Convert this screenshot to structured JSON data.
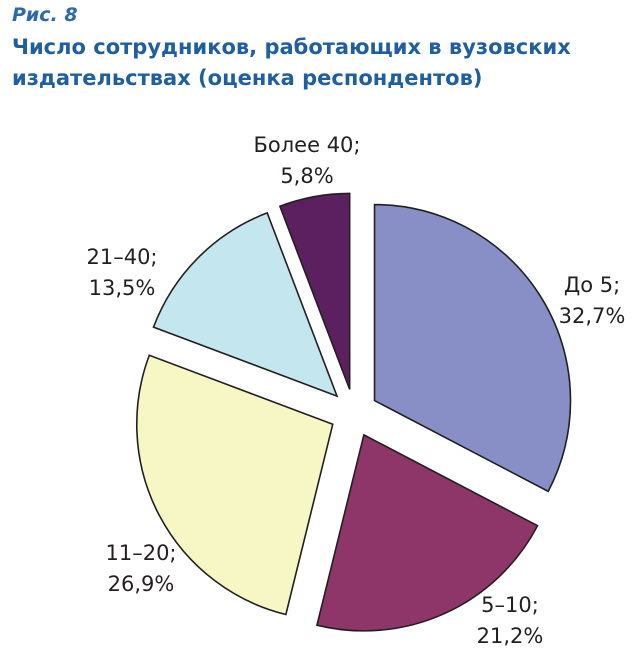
{
  "figure": {
    "label": "Рис. 8",
    "title": "Число сотрудников, работающих в вузовских издательствах (оценка респондентов)"
  },
  "chart_data": {
    "type": "pie",
    "title": "Число сотрудников, работающих в вузовских издательствах (оценка респондентов)",
    "slices": [
      {
        "label": "До 5",
        "value": 32.7,
        "value_text": "32,7%",
        "color": "#878fc6"
      },
      {
        "label": "5–10",
        "value": 21.2,
        "value_text": "21,2%",
        "color": "#8e3669"
      },
      {
        "label": "11–20",
        "value": 26.9,
        "value_text": "26,9%",
        "color": "#f7f7c5"
      },
      {
        "label": "21–40",
        "value": 13.5,
        "value_text": "13,5%",
        "color": "#c4e6ef"
      },
      {
        "label": "Более 40",
        "value": 5.8,
        "value_text": "5,8%",
        "color": "#5c2060"
      }
    ],
    "exploded": true,
    "start_angle": "12 o'clock, clockwise"
  }
}
